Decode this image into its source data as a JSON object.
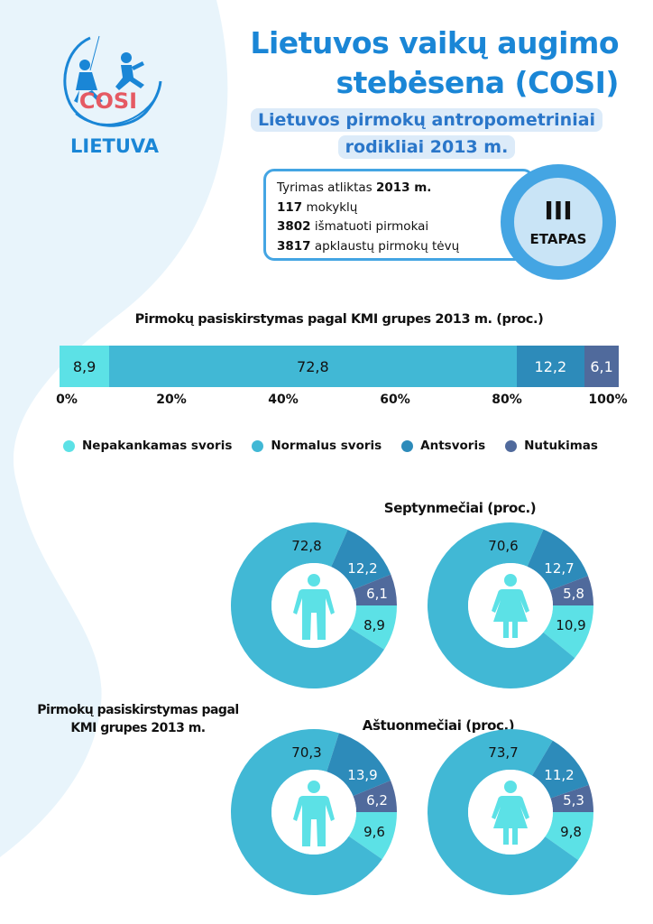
{
  "header": {
    "title_line1": "Lietuvos vaikų augimo",
    "title_line2": "stebėsena (COSI)",
    "subtitle_line1": "Lietuvos pirmokų antropometriniai",
    "subtitle_line2": "rodikliai 2013 m."
  },
  "logo": {
    "wordmark": "COSI",
    "label": "LIETUVA"
  },
  "info": {
    "line1_text": "Tyrimas atliktas ",
    "line1_bold": "2013 m.",
    "line2_bold": "117",
    "line2_text": " mokyklų",
    "line3_bold": "3802",
    "line3_text": " išmatuoti pirmokai",
    "line4_bold": "3817",
    "line4_text": " apklaustų pirmokų tėvų"
  },
  "stage": {
    "roman": "III",
    "label": "ETAPAS"
  },
  "side_text": {
    "line1": "Pirmokų pasiskirstymas pagal",
    "line2": "KMI grupes 2013 m."
  },
  "colors": {
    "underweight": "#5ce1e6",
    "normal": "#41b8d5",
    "overweight": "#2d8bba",
    "obese": "#506a9c",
    "accent": "#1a86d6",
    "background_blob": "#e8f4fb"
  },
  "chart_data": [
    {
      "type": "bar",
      "orientation": "horizontal-stacked",
      "title": "Pirmokų pasiskirstymas pagal KMI grupes 2013 m. (proc.)",
      "xlim": [
        0,
        100
      ],
      "ticks": [
        "0%",
        "20%",
        "40%",
        "60%",
        "80%",
        "100%"
      ],
      "legend": "bottom",
      "series": [
        {
          "name": "Nepakankamas svoris",
          "value": 8.9,
          "label": "8,9"
        },
        {
          "name": "Normalus svoris",
          "value": 72.8,
          "label": "72,8"
        },
        {
          "name": "Antsvoris",
          "value": 12.2,
          "label": "12,2"
        },
        {
          "name": "Nutukimas",
          "value": 6.1,
          "label": "6,1"
        }
      ]
    },
    {
      "type": "pie",
      "variant": "donut",
      "group_title": "Septynmečiai (proc.)",
      "icon": "boy-icon",
      "values": [
        8.9,
        72.8,
        12.2,
        6.1
      ],
      "labels": [
        "8,9",
        "72,8",
        "12,2",
        "6,1"
      ]
    },
    {
      "type": "pie",
      "variant": "donut",
      "group_title": "Septynmečiai (proc.)",
      "icon": "girl-icon",
      "values": [
        10.9,
        70.6,
        12.7,
        5.8
      ],
      "labels": [
        "10,9",
        "70,6",
        "12,7",
        "5,8"
      ]
    },
    {
      "type": "pie",
      "variant": "donut",
      "group_title": "Aštuonmečiai (proc.)",
      "icon": "boy-icon",
      "values": [
        9.6,
        70.3,
        13.9,
        6.2
      ],
      "labels": [
        "9,6",
        "70,3",
        "13,9",
        "6,2"
      ]
    },
    {
      "type": "pie",
      "variant": "donut",
      "group_title": "Aštuonmečiai (proc.)",
      "icon": "girl-icon",
      "values": [
        9.8,
        73.7,
        11.2,
        5.3
      ],
      "labels": [
        "9,8",
        "73,7",
        "11,2",
        "5,3"
      ]
    }
  ],
  "donut_titles": {
    "row1": "Septynmečiai (proc.)",
    "row2": "Aštuonmečiai (proc.)"
  }
}
